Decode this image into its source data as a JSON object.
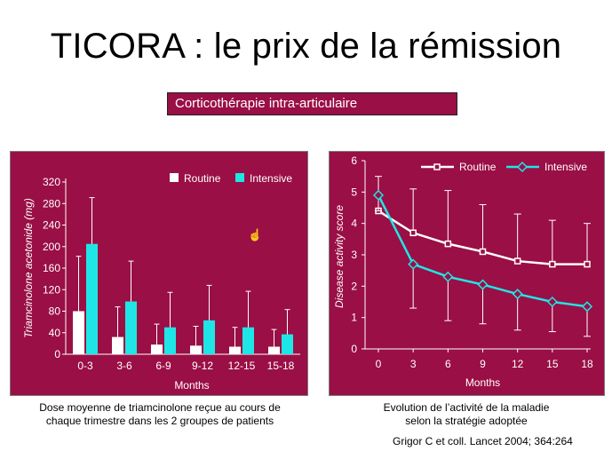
{
  "title": "TICORA : le prix de la rémission",
  "subtitle": "Corticothérapie intra-articulaire",
  "caption_left": {
    "line1": "Dose moyenne de triamcinolone reçue au cours de",
    "line2": "chaque trimestre dans les 2 groupes de patients"
  },
  "caption_right": {
    "line1": "Evolution de l’activité de la maladie",
    "line2": "selon la stratégie adoptée"
  },
  "reference": "Grigor C et coll. Lancet 2004; 364:264",
  "colors": {
    "panel": "#9a0f45",
    "routine": "#ffffff",
    "intensive": "#1fe6e6",
    "axis": "#ffffff"
  },
  "cursor_icon": "hand-pointer-icon",
  "chart_data": [
    {
      "type": "bar",
      "title": "",
      "xlabel": "Months",
      "ylabel": "Triamcinolone acetonide (mg)",
      "ylim": [
        0,
        320
      ],
      "yticks": [
        0,
        40,
        80,
        120,
        160,
        200,
        240,
        280,
        320
      ],
      "categories": [
        "0-3",
        "3-6",
        "6-9",
        "9-12",
        "12-15",
        "15-18"
      ],
      "legend": "top-right",
      "series": [
        {
          "name": "Routine",
          "values": [
            80,
            32,
            18,
            16,
            14,
            14
          ],
          "error_upper": [
            182,
            88,
            56,
            52,
            50,
            46
          ]
        },
        {
          "name": "Intensive",
          "values": [
            205,
            98,
            50,
            63,
            50,
            37
          ],
          "error_upper": [
            291,
            173,
            115,
            128,
            117,
            83
          ]
        }
      ]
    },
    {
      "type": "line",
      "title": "",
      "xlabel": "Months",
      "ylabel": "Disease activity score",
      "ylim": [
        0,
        6
      ],
      "xlim": [
        0,
        18
      ],
      "yticks": [
        0,
        1,
        2,
        3,
        4,
        5,
        6
      ],
      "x": [
        0,
        3,
        6,
        9,
        12,
        15,
        18
      ],
      "legend": "top",
      "series": [
        {
          "name": "Routine",
          "values": [
            4.4,
            3.7,
            3.35,
            3.1,
            2.8,
            2.7,
            2.7
          ],
          "error_upper": [
            5.5,
            5.1,
            5.05,
            4.6,
            4.3,
            4.1,
            4.0
          ],
          "error_lower": [
            null,
            null,
            null,
            null,
            null,
            null,
            null
          ]
        },
        {
          "name": "Intensive",
          "values": [
            4.9,
            2.7,
            2.3,
            2.05,
            1.75,
            1.5,
            1.35
          ],
          "error_upper": [
            null,
            null,
            null,
            null,
            null,
            null,
            null
          ],
          "error_lower": [
            4.4,
            1.3,
            0.9,
            0.8,
            0.6,
            0.55,
            0.4
          ]
        }
      ]
    }
  ]
}
